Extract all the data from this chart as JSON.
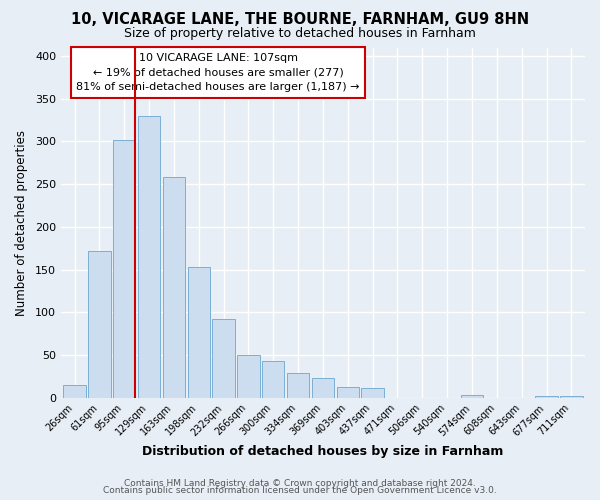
{
  "title": "10, VICARAGE LANE, THE BOURNE, FARNHAM, GU9 8HN",
  "subtitle": "Size of property relative to detached houses in Farnham",
  "xlabel": "Distribution of detached houses by size in Farnham",
  "ylabel": "Number of detached properties",
  "bar_color": "#ccddf0",
  "bar_edge_color": "#7aafd4",
  "categories": [
    "26sqm",
    "61sqm",
    "95sqm",
    "129sqm",
    "163sqm",
    "198sqm",
    "232sqm",
    "266sqm",
    "300sqm",
    "334sqm",
    "369sqm",
    "403sqm",
    "437sqm",
    "471sqm",
    "506sqm",
    "540sqm",
    "574sqm",
    "608sqm",
    "643sqm",
    "677sqm",
    "711sqm"
  ],
  "values": [
    15,
    172,
    302,
    330,
    258,
    153,
    92,
    50,
    43,
    29,
    23,
    13,
    11,
    0,
    0,
    0,
    3,
    0,
    0,
    2,
    2
  ],
  "ylim": [
    0,
    410
  ],
  "yticks": [
    0,
    50,
    100,
    150,
    200,
    250,
    300,
    350,
    400
  ],
  "marker_label": "10 VICARAGE LANE: 107sqm",
  "annotation_line1": "← 19% of detached houses are smaller (277)",
  "annotation_line2": "81% of semi-detached houses are larger (1,187) →",
  "annotation_box_color": "#ffffff",
  "annotation_box_edge": "#cc0000",
  "marker_line_color": "#cc0000",
  "footer1": "Contains HM Land Registry data © Crown copyright and database right 2024.",
  "footer2": "Contains public sector information licensed under the Open Government Licence v3.0.",
  "background_color": "#e8eef5",
  "plot_bg_color": "#e8eef5",
  "grid_color": "#ffffff"
}
